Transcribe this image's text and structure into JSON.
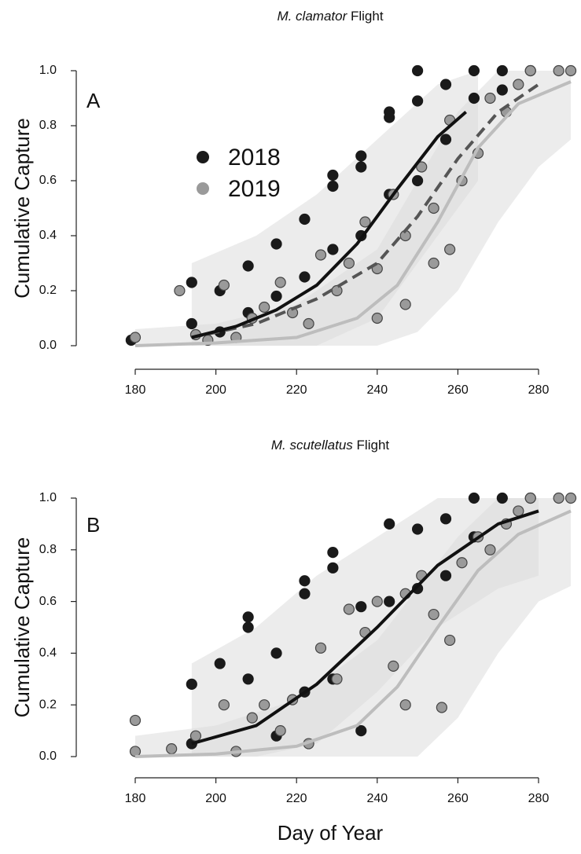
{
  "chart_data": [
    {
      "type": "scatter",
      "title_species": "M. clamator",
      "title_rest": "Flight",
      "panel_label": "A",
      "y_label": "Cumulative Capture",
      "xlim": [
        177,
        288
      ],
      "ylim": [
        -0.03,
        1.04
      ],
      "xticks": [
        180,
        200,
        220,
        240,
        260,
        280
      ],
      "yticks": [
        {
          "value": 0,
          "label": "0.0"
        },
        {
          "value": 0.2,
          "label": "0.2"
        },
        {
          "value": 0.4,
          "label": "0.4"
        },
        {
          "value": 0.6,
          "label": "0.6"
        },
        {
          "value": 0.8,
          "label": "0.8"
        },
        {
          "value": 1,
          "label": "1.0"
        }
      ],
      "legend": true,
      "series": [
        {
          "name": "2018",
          "color": "#1a1a1a",
          "x": [
            179,
            194,
            194,
            201,
            201,
            208,
            208,
            215,
            215,
            222,
            222,
            229,
            229,
            229,
            236,
            236,
            236,
            243,
            243,
            243,
            250,
            250,
            250,
            257,
            257,
            264,
            264,
            271,
            271,
            278
          ],
          "values": [
            0.02,
            0.23,
            0.08,
            0.2,
            0.05,
            0.29,
            0.12,
            0.37,
            0.18,
            0.46,
            0.25,
            0.62,
            0.58,
            0.35,
            0.69,
            0.65,
            0.4,
            0.85,
            0.83,
            0.55,
            1.0,
            0.89,
            0.6,
            0.95,
            0.75,
            1.0,
            0.9,
            1.0,
            0.93,
            1.0
          ]
        },
        {
          "name": "2019",
          "color": "#9a9a9a",
          "x": [
            180,
            191,
            195,
            198,
            202,
            205,
            209,
            212,
            216,
            219,
            223,
            226,
            230,
            233,
            237,
            240,
            240,
            244,
            247,
            247,
            251,
            254,
            254,
            258,
            258,
            261,
            265,
            268,
            272,
            275,
            278,
            285,
            288
          ],
          "values": [
            0.03,
            0.2,
            0.04,
            0.02,
            0.22,
            0.03,
            0.1,
            0.14,
            0.23,
            0.12,
            0.08,
            0.33,
            0.2,
            0.3,
            0.45,
            0.1,
            0.28,
            0.55,
            0.4,
            0.15,
            0.65,
            0.5,
            0.3,
            0.82,
            0.35,
            0.6,
            0.7,
            0.9,
            0.85,
            0.95,
            1.0,
            1.0,
            1.0
          ]
        }
      ],
      "bands": [
        {
          "x": [
            194,
            210,
            225,
            240,
            255,
            265
          ],
          "lower": [
            0,
            0,
            0,
            0.1,
            0.4,
            0.6
          ],
          "upper": [
            0.3,
            0.4,
            0.55,
            0.75,
            0.95,
            1
          ]
        },
        {
          "x": [
            180,
            200,
            220,
            240,
            250,
            260,
            270,
            280,
            288
          ],
          "lower": [
            0,
            0,
            0,
            0,
            0.05,
            0.2,
            0.45,
            0.65,
            0.75
          ],
          "upper": [
            0.06,
            0.08,
            0.15,
            0.35,
            0.6,
            0.85,
            1,
            1,
            1
          ]
        }
      ],
      "lines": [
        {
          "color": "#bdbdbd",
          "dashed": false,
          "x": [
            180,
            200,
            220,
            235,
            245,
            255,
            265,
            275,
            288
          ],
          "values": [
            0.0,
            0.01,
            0.03,
            0.1,
            0.22,
            0.45,
            0.72,
            0.88,
            0.96
          ]
        },
        {
          "color": "#555555",
          "dashed": true,
          "x": [
            194,
            210,
            225,
            240,
            250,
            260,
            270,
            280
          ],
          "values": [
            0.03,
            0.08,
            0.17,
            0.3,
            0.47,
            0.68,
            0.85,
            0.95
          ]
        },
        {
          "color": "#111111",
          "dashed": false,
          "x": [
            194,
            205,
            215,
            225,
            235,
            245,
            255,
            262
          ],
          "values": [
            0.03,
            0.07,
            0.13,
            0.22,
            0.37,
            0.57,
            0.76,
            0.85
          ]
        }
      ]
    },
    {
      "type": "scatter",
      "title_species": "M. scutellatus",
      "title_rest": "Flight",
      "panel_label": "B",
      "y_label": "Cumulative Capture",
      "x_label": "Day of Year",
      "xlim": [
        177,
        288
      ],
      "ylim": [
        -0.03,
        1.04
      ],
      "xticks": [
        180,
        200,
        220,
        240,
        260,
        280
      ],
      "yticks": [
        {
          "value": 0,
          "label": "0.0"
        },
        {
          "value": 0.2,
          "label": "0.2"
        },
        {
          "value": 0.4,
          "label": "0.4"
        },
        {
          "value": 0.6,
          "label": "0.6"
        },
        {
          "value": 0.8,
          "label": "0.8"
        },
        {
          "value": 1,
          "label": "1.0"
        }
      ],
      "legend": false,
      "series": [
        {
          "color": "#1a1a1a",
          "x": [
            194,
            194,
            201,
            208,
            208,
            208,
            215,
            215,
            222,
            222,
            222,
            229,
            229,
            229,
            236,
            236,
            243,
            243,
            250,
            250,
            257,
            257,
            264,
            264,
            271,
            278
          ],
          "values": [
            0.28,
            0.05,
            0.36,
            0.54,
            0.5,
            0.3,
            0.4,
            0.08,
            0.68,
            0.63,
            0.25,
            0.79,
            0.73,
            0.3,
            0.58,
            0.1,
            0.9,
            0.6,
            0.88,
            0.65,
            0.92,
            0.7,
            1,
            0.85,
            1,
            1
          ]
        },
        {
          "color": "#9a9a9a",
          "x": [
            180,
            180,
            189,
            195,
            202,
            205,
            209,
            212,
            216,
            219,
            223,
            226,
            230,
            233,
            237,
            240,
            244,
            247,
            247,
            251,
            254,
            256,
            258,
            261,
            265,
            268,
            272,
            275,
            278,
            285,
            288
          ],
          "values": [
            0.14,
            0.02,
            0.03,
            0.08,
            0.2,
            0.02,
            0.15,
            0.2,
            0.1,
            0.22,
            0.05,
            0.42,
            0.3,
            0.57,
            0.48,
            0.6,
            0.35,
            0.63,
            0.2,
            0.7,
            0.55,
            0.19,
            0.45,
            0.75,
            0.85,
            0.8,
            0.9,
            0.95,
            1,
            1,
            1
          ]
        }
      ],
      "bands": [
        {
          "x": [
            194,
            210,
            225,
            240,
            255,
            270,
            280
          ],
          "lower": [
            0,
            0,
            0.05,
            0.25,
            0.5,
            0.65,
            0.7
          ],
          "upper": [
            0.36,
            0.5,
            0.7,
            0.85,
            1,
            1,
            1
          ]
        },
        {
          "x": [
            180,
            200,
            220,
            240,
            250,
            260,
            270,
            280,
            288
          ],
          "lower": [
            0,
            0,
            0,
            0,
            0,
            0.15,
            0.4,
            0.6,
            0.66
          ],
          "upper": [
            0.08,
            0.12,
            0.22,
            0.45,
            0.65,
            0.85,
            1,
            1,
            1
          ]
        }
      ],
      "lines": [
        {
          "color": "#bdbdbd",
          "dashed": false,
          "x": [
            180,
            200,
            220,
            235,
            245,
            255,
            265,
            275,
            288
          ],
          "values": [
            0,
            0.01,
            0.04,
            0.12,
            0.27,
            0.5,
            0.72,
            0.86,
            0.95
          ]
        },
        {
          "color": "#111111",
          "dashed": false,
          "x": [
            194,
            210,
            225,
            240,
            255,
            270,
            280
          ],
          "values": [
            0.05,
            0.12,
            0.28,
            0.5,
            0.74,
            0.9,
            0.95
          ]
        }
      ]
    }
  ]
}
